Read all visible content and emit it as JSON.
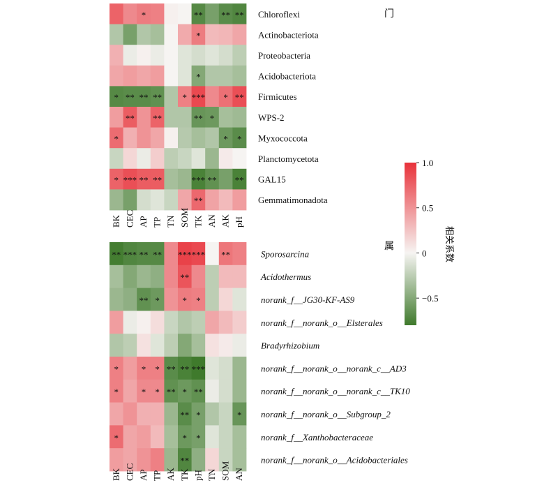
{
  "chart_data": [
    {
      "type": "heatmap",
      "title": "门",
      "columns": [
        "BK",
        "CEC",
        "AP",
        "TP",
        "TN",
        "SOM",
        "TK",
        "AN",
        "AK",
        "pH"
      ],
      "rows": [
        "Chloroflexi",
        "Actinobacteriota",
        "Proteobacteria",
        "Acidobacteriota",
        "Firmicutes",
        "WPS-2",
        "Myxococcota",
        "Planctomycetota",
        "GAL15",
        "Gemmatimonadota"
      ],
      "row_italic": [
        false,
        false,
        false,
        false,
        false,
        false,
        false,
        false,
        false,
        false
      ],
      "values": [
        [
          0.75,
          0.55,
          0.62,
          0.6,
          0.02,
          0.0,
          -0.7,
          -0.55,
          -0.68,
          -0.72
        ],
        [
          -0.3,
          -0.55,
          -0.3,
          -0.35,
          0.0,
          0.38,
          0.62,
          0.3,
          0.32,
          0.4
        ],
        [
          0.35,
          -0.05,
          0.02,
          -0.05,
          0.0,
          -0.1,
          -0.15,
          -0.1,
          -0.15,
          -0.25
        ],
        [
          0.4,
          0.45,
          0.4,
          0.45,
          0.0,
          -0.1,
          -0.5,
          -0.3,
          -0.3,
          -0.35
        ],
        [
          -0.7,
          -0.68,
          -0.68,
          -0.65,
          -0.3,
          0.6,
          0.88,
          0.55,
          0.68,
          0.85
        ],
        [
          0.45,
          0.78,
          0.5,
          0.75,
          -0.3,
          -0.3,
          -0.62,
          -0.6,
          -0.35,
          -0.38
        ],
        [
          0.7,
          0.35,
          0.5,
          0.4,
          0.02,
          -0.28,
          -0.35,
          -0.3,
          -0.6,
          -0.68
        ],
        [
          -0.2,
          0.15,
          -0.05,
          0.2,
          -0.25,
          -0.2,
          -0.1,
          -0.4,
          0.05,
          0.0
        ],
        [
          0.75,
          0.85,
          0.78,
          0.78,
          -0.35,
          -0.4,
          -0.75,
          -0.65,
          -0.55,
          -0.75
        ],
        [
          -0.4,
          -0.55,
          -0.15,
          -0.1,
          -0.2,
          0.4,
          0.72,
          0.42,
          0.3,
          0.45
        ]
      ],
      "significance": [
        [
          "",
          "",
          "*",
          "",
          "",
          "",
          "**",
          "",
          "**",
          "**"
        ],
        [
          "",
          "",
          "",
          "",
          "",
          "",
          "*",
          "",
          "",
          ""
        ],
        [
          "",
          "",
          "",
          "",
          "",
          "",
          "",
          "",
          "",
          ""
        ],
        [
          "",
          "",
          "",
          "",
          "",
          "",
          "*",
          "",
          "",
          ""
        ],
        [
          "*",
          "**",
          "**",
          "**",
          "",
          "*",
          "***",
          "",
          "*",
          "**"
        ],
        [
          "",
          "**",
          "",
          "**",
          "",
          "",
          "**",
          "*",
          "",
          ""
        ],
        [
          "*",
          "",
          "",
          "",
          "",
          "",
          "",
          "",
          "*",
          "*"
        ],
        [
          "",
          "",
          "",
          "",
          "",
          "",
          "",
          "",
          "",
          ""
        ],
        [
          "*",
          "***",
          "**",
          "**",
          "",
          "",
          "***",
          "**",
          "",
          "**"
        ],
        [
          "",
          "",
          "",
          "",
          "",
          "",
          "**",
          "",
          "",
          ""
        ]
      ]
    },
    {
      "type": "heatmap",
      "title": "属",
      "columns": [
        "BK",
        "CEC",
        "AP",
        "TP",
        "AK",
        "TK",
        "pH",
        "TN",
        "SOM",
        "AN"
      ],
      "rows": [
        [
          "Sporosarcina"
        ],
        [
          "Acidothermus"
        ],
        [
          "norank_f__JG30-KF-AS9"
        ],
        [
          "norank_f__norank_o__",
          "Elsterales"
        ],
        [
          "Bradyrhizobium"
        ],
        [
          "norank_f__norank_o__norank_c__",
          "AD3"
        ],
        [
          "norank_f__norank_o__norank_c__",
          "TK10"
        ],
        [
          "norank_f__norank_o__",
          "Subgroup_2"
        ],
        [
          "norank_f__",
          "Xanthobacteraceae"
        ],
        [
          "norank_f__norank_o__",
          "Acidobacteriales"
        ]
      ],
      "values": [
        [
          -0.78,
          -0.72,
          -0.7,
          -0.7,
          0.55,
          0.92,
          0.88,
          0.0,
          0.65,
          0.6
        ],
        [
          -0.35,
          -0.5,
          -0.4,
          -0.45,
          0.55,
          0.82,
          0.55,
          -0.25,
          0.3,
          0.3
        ],
        [
          -0.4,
          -0.45,
          -0.65,
          -0.6,
          0.5,
          0.62,
          0.6,
          -0.25,
          0.15,
          -0.1
        ],
        [
          0.45,
          -0.05,
          0.02,
          0.12,
          -0.2,
          -0.3,
          -0.25,
          0.4,
          0.3,
          0.2
        ],
        [
          -0.3,
          -0.25,
          0.1,
          -0.1,
          -0.25,
          -0.5,
          -0.35,
          0.1,
          0.05,
          -0.05
        ],
        [
          0.6,
          0.45,
          0.6,
          0.6,
          -0.68,
          -0.75,
          -0.8,
          -0.1,
          -0.15,
          -0.4
        ],
        [
          0.6,
          0.4,
          0.55,
          0.55,
          -0.65,
          -0.6,
          -0.65,
          -0.05,
          -0.15,
          -0.4
        ],
        [
          0.4,
          0.5,
          0.35,
          0.35,
          -0.4,
          -0.68,
          -0.55,
          -0.3,
          -0.2,
          -0.62
        ],
        [
          0.7,
          0.4,
          0.45,
          0.3,
          -0.35,
          -0.6,
          -0.55,
          -0.1,
          -0.2,
          -0.35
        ],
        [
          0.45,
          0.4,
          0.5,
          0.6,
          -0.4,
          -0.72,
          -0.45,
          0.15,
          -0.2,
          -0.35
        ]
      ],
      "significance": [
        [
          "**",
          "***",
          "**",
          "**",
          "",
          "***",
          "***",
          "",
          "**",
          ""
        ],
        [
          "",
          "",
          "",
          "",
          "",
          "**",
          "",
          "",
          "",
          ""
        ],
        [
          "",
          "",
          "**",
          "*",
          "",
          "*",
          "*",
          "",
          "",
          ""
        ],
        [
          "",
          "",
          "",
          "",
          "",
          "",
          "",
          "",
          "",
          ""
        ],
        [
          "",
          "",
          "",
          "",
          "",
          "",
          "",
          "",
          "",
          ""
        ],
        [
          "*",
          "",
          "*",
          "*",
          "**",
          "**",
          "***",
          "",
          "",
          ""
        ],
        [
          "*",
          "",
          "*",
          "*",
          "**",
          "*",
          "**",
          "",
          "",
          ""
        ],
        [
          "",
          "",
          "",
          "",
          "",
          "**",
          "*",
          "",
          "",
          "*"
        ],
        [
          "*",
          "",
          "",
          "",
          "",
          "*",
          "*",
          "",
          "",
          ""
        ],
        [
          "",
          "",
          "",
          "",
          "",
          "**",
          "",
          "",
          "",
          ""
        ]
      ]
    }
  ],
  "colorbar": {
    "label": "相关系数",
    "ticks": [
      1.0,
      0.5,
      0,
      -0.5
    ],
    "tick_labels": [
      "1.0",
      "0.5",
      "0",
      "−0.5"
    ],
    "range": [
      -0.8,
      1.0
    ],
    "colors": {
      "negative": "#3f7a2c",
      "zero": "#f6f4f2",
      "positive": "#e8323a"
    }
  }
}
